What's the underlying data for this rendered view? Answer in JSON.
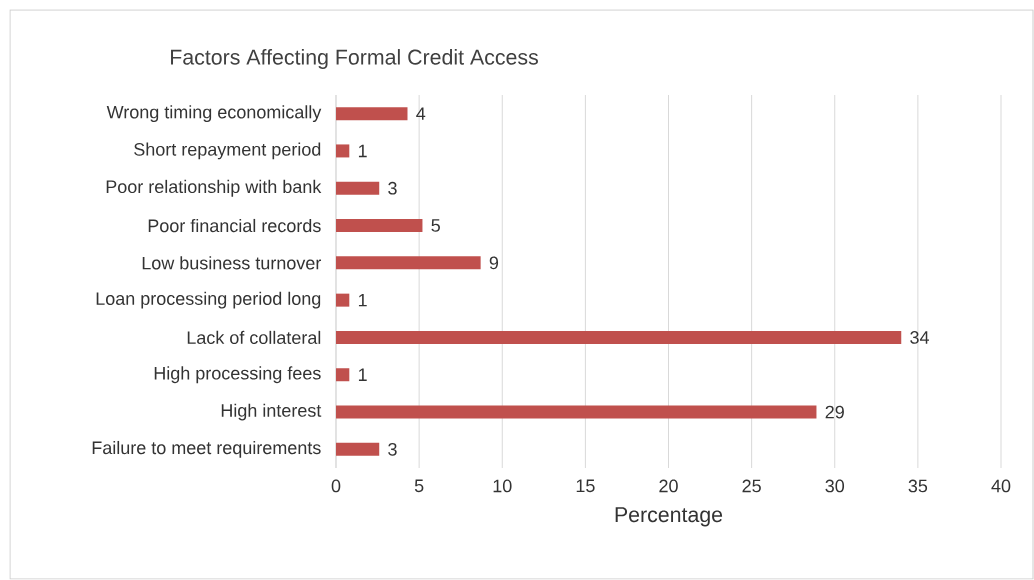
{
  "chart_data": {
    "type": "bar",
    "orientation": "horizontal",
    "title": "Factors Affecting  Formal Credit Access",
    "xlabel": "Percentage",
    "categories": [
      "Wrong timing economically",
      "Short repayment period",
      "Poor relationship with bank",
      "Poor financial records",
      "Low business turnover",
      "Loan processing period long",
      "Lack of collateral",
      "High processing fees",
      "High interest",
      "Failure to meet requirements"
    ],
    "values": [
      4.3,
      0.8,
      2.6,
      5.2,
      8.7,
      0.8,
      34.0,
      0.8,
      28.9,
      2.6
    ],
    "value_labels": [
      "4",
      "1",
      "3",
      "5",
      "9",
      "1",
      "34",
      "1",
      "29",
      "3"
    ],
    "color": "#c0504d",
    "xlim": [
      0,
      40
    ],
    "xticks": [
      0,
      5,
      10,
      15,
      20,
      25,
      30,
      35,
      40
    ],
    "grid": "x"
  }
}
